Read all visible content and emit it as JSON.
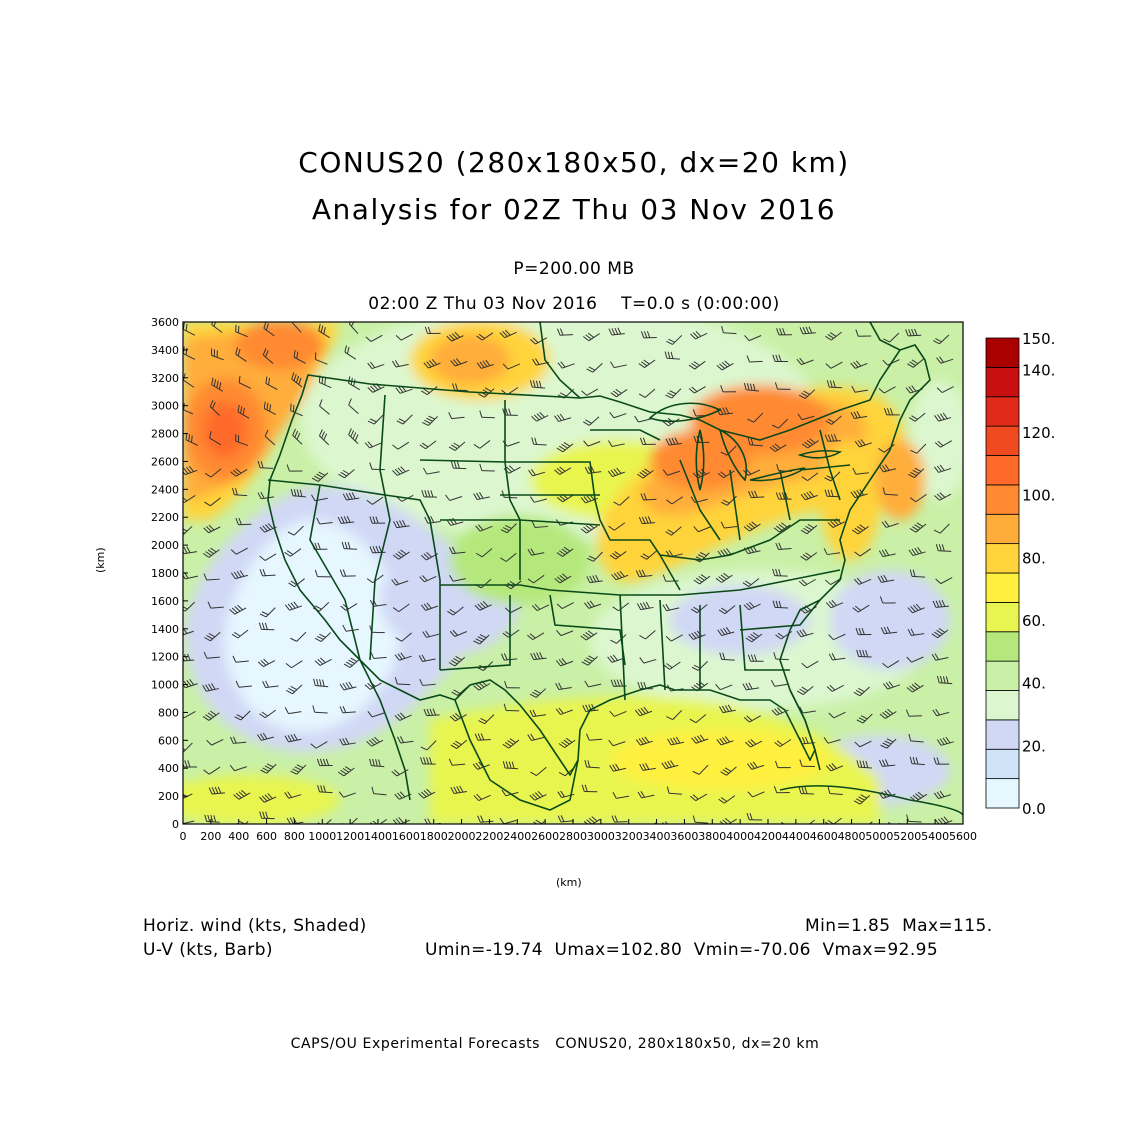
{
  "title": {
    "line1": "CONUS20 (280x180x50, dx=20 km)",
    "line2": "Analysis for 02Z Thu 03 Nov 2016"
  },
  "level": "P=200.00 MB",
  "time": "02:00 Z Thu 03 Nov 2016    T=0.0 s (0:00:00)",
  "axes": {
    "x_label": "(km)",
    "y_label": "(km)",
    "x_ticks": [
      "0",
      "200",
      "400",
      "600",
      "800",
      "1000",
      "1200",
      "1400",
      "1600",
      "1800",
      "2000",
      "2200",
      "2400",
      "2600",
      "2800",
      "3000",
      "3200",
      "3400",
      "3600",
      "3800",
      "4000",
      "4200",
      "4400",
      "4600",
      "4800",
      "5000",
      "5200",
      "5400",
      "5600"
    ],
    "y_ticks": [
      "0",
      "200",
      "400",
      "600",
      "800",
      "1000",
      "1200",
      "1400",
      "1600",
      "1800",
      "2000",
      "2200",
      "2400",
      "2600",
      "2800",
      "3000",
      "3200",
      "3400",
      "3600"
    ],
    "x_range": [
      0,
      5600
    ],
    "y_range": [
      0,
      3600
    ]
  },
  "colorbar": {
    "labels": [
      "0.0",
      "20.",
      "40.",
      "60.",
      "80.",
      "100.",
      "120.",
      "140.",
      "150."
    ],
    "colors": [
      "#e6f7ff",
      "#cfe5f7",
      "#d0d8f5",
      "#dcf7cf",
      "#c9f0a6",
      "#b5e87c",
      "#e8f550",
      "#fff040",
      "#ffd43a",
      "#ffad3a",
      "#ff8a32",
      "#ff6a2a",
      "#f04a20",
      "#e02b1a",
      "#c81010",
      "#aa0000"
    ]
  },
  "legend": {
    "shaded": "Horiz. wind (kts, Shaded)",
    "barb": "U-V (kts, Barb)",
    "minmax": "Min=1.85  Max=115.",
    "uv_stats": "Umin=-19.74  Umax=102.80  Vmin=-70.06  Vmax=92.95"
  },
  "footer": "CAPS/OU Experimental Forecasts   CONUS20, 280x180x50, dx=20 km"
}
